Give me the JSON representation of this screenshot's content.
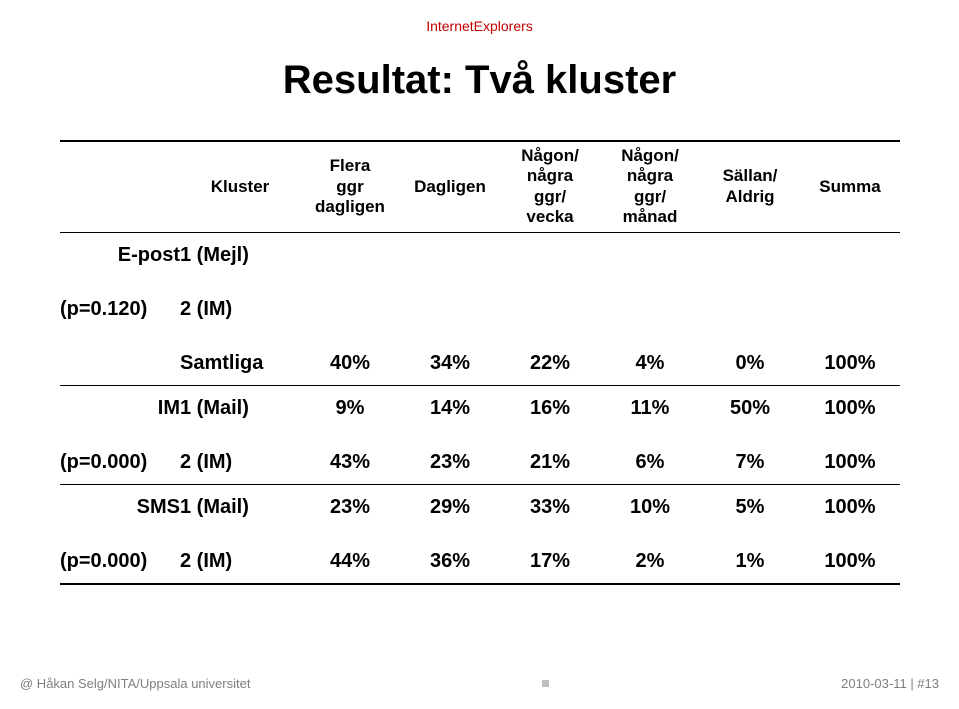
{
  "brand": "InternetExplorers",
  "title": "Resultat: Två kluster",
  "colors": {
    "brand": "#c00000",
    "text": "#000000",
    "footer": "#7f7f7f",
    "rule": "#000000",
    "background": "#ffffff"
  },
  "typography": {
    "brand_fontsize": 14,
    "title_fontsize": 40,
    "header_fontsize": 17,
    "data_fontsize": 20,
    "footer_fontsize": 13,
    "font_family": "Arial"
  },
  "table": {
    "headers": {
      "kluster": "Kluster",
      "c1": "Flera\nggr\ndagligen",
      "c2": "Dagligen",
      "c3": "Någon/\nnågra\nggr/\nvecka",
      "c4": "Någon/\nnågra\nggr/\nmånad",
      "c5": "Sällan/\nAldrig",
      "c6": "Summa"
    },
    "groups": [
      {
        "label_left": "E-post",
        "pvalue_label": "(p=0.120)",
        "rows": [
          {
            "kluster": "1 (Mejl)",
            "values": [
              "",
              "",
              "",
              "",
              "",
              ""
            ]
          },
          {
            "kluster": "2 (IM)",
            "values": [
              "",
              "",
              "",
              "",
              "",
              ""
            ]
          },
          {
            "kluster": "Samtliga",
            "values": [
              "40%",
              "34%",
              "22%",
              "4%",
              "0%",
              "100%"
            ]
          }
        ]
      },
      {
        "label_left": "IM",
        "pvalue_label": "(p=0.000)",
        "rows": [
          {
            "kluster": "1 (Mail)",
            "values": [
              "9%",
              "14%",
              "16%",
              "11%",
              "50%",
              "100%"
            ]
          },
          {
            "kluster": "2 (IM)",
            "values": [
              "43%",
              "23%",
              "21%",
              "6%",
              "7%",
              "100%"
            ]
          }
        ]
      },
      {
        "label_left": "SMS",
        "pvalue_label": "(p=0.000)",
        "rows": [
          {
            "kluster": "1 (Mail)",
            "values": [
              "23%",
              "29%",
              "33%",
              "10%",
              "5%",
              "100%"
            ]
          },
          {
            "kluster": "2 (IM)",
            "values": [
              "44%",
              "36%",
              "17%",
              "2%",
              "1%",
              "100%"
            ]
          }
        ]
      }
    ]
  },
  "footer": {
    "left": "@ Håkan Selg/NITA/Uppsala universitet",
    "right": "2010-03-11 | #13"
  }
}
